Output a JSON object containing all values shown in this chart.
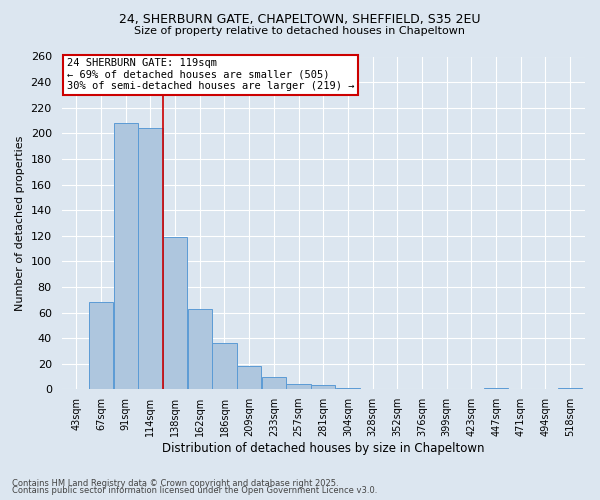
{
  "title1": "24, SHERBURN GATE, CHAPELTOWN, SHEFFIELD, S35 2EU",
  "title2": "Size of property relative to detached houses in Chapeltown",
  "xlabel": "Distribution of detached houses by size in Chapeltown",
  "ylabel": "Number of detached properties",
  "categories": [
    "43sqm",
    "67sqm",
    "91sqm",
    "114sqm",
    "138sqm",
    "162sqm",
    "186sqm",
    "209sqm",
    "233sqm",
    "257sqm",
    "281sqm",
    "304sqm",
    "328sqm",
    "352sqm",
    "376sqm",
    "399sqm",
    "423sqm",
    "447sqm",
    "471sqm",
    "494sqm",
    "518sqm"
  ],
  "values": [
    0,
    68,
    208,
    204,
    119,
    63,
    36,
    18,
    10,
    4,
    3,
    1,
    0,
    0,
    0,
    0,
    0,
    1,
    0,
    0,
    1
  ],
  "bar_color": "#aec6de",
  "bar_edge_color": "#5b9bd5",
  "background_color": "#dce6f0",
  "plot_bg_color": "#dce6f0",
  "grid_color": "#ffffff",
  "ylim": [
    0,
    260
  ],
  "yticks": [
    0,
    20,
    40,
    60,
    80,
    100,
    120,
    140,
    160,
    180,
    200,
    220,
    240,
    260
  ],
  "property_size": 119,
  "property_label": "24 SHERBURN GATE: 119sqm",
  "annotation_line1": "← 69% of detached houses are smaller (505)",
  "annotation_line2": "30% of semi-detached houses are larger (219) →",
  "red_line_color": "#cc0000",
  "annotation_box_color": "#ffffff",
  "annotation_border_color": "#cc0000",
  "footnote1": "Contains HM Land Registry data © Crown copyright and database right 2025.",
  "footnote2": "Contains public sector information licensed under the Open Government Licence v3.0.",
  "bin_width": 24,
  "red_line_index": 3.5
}
